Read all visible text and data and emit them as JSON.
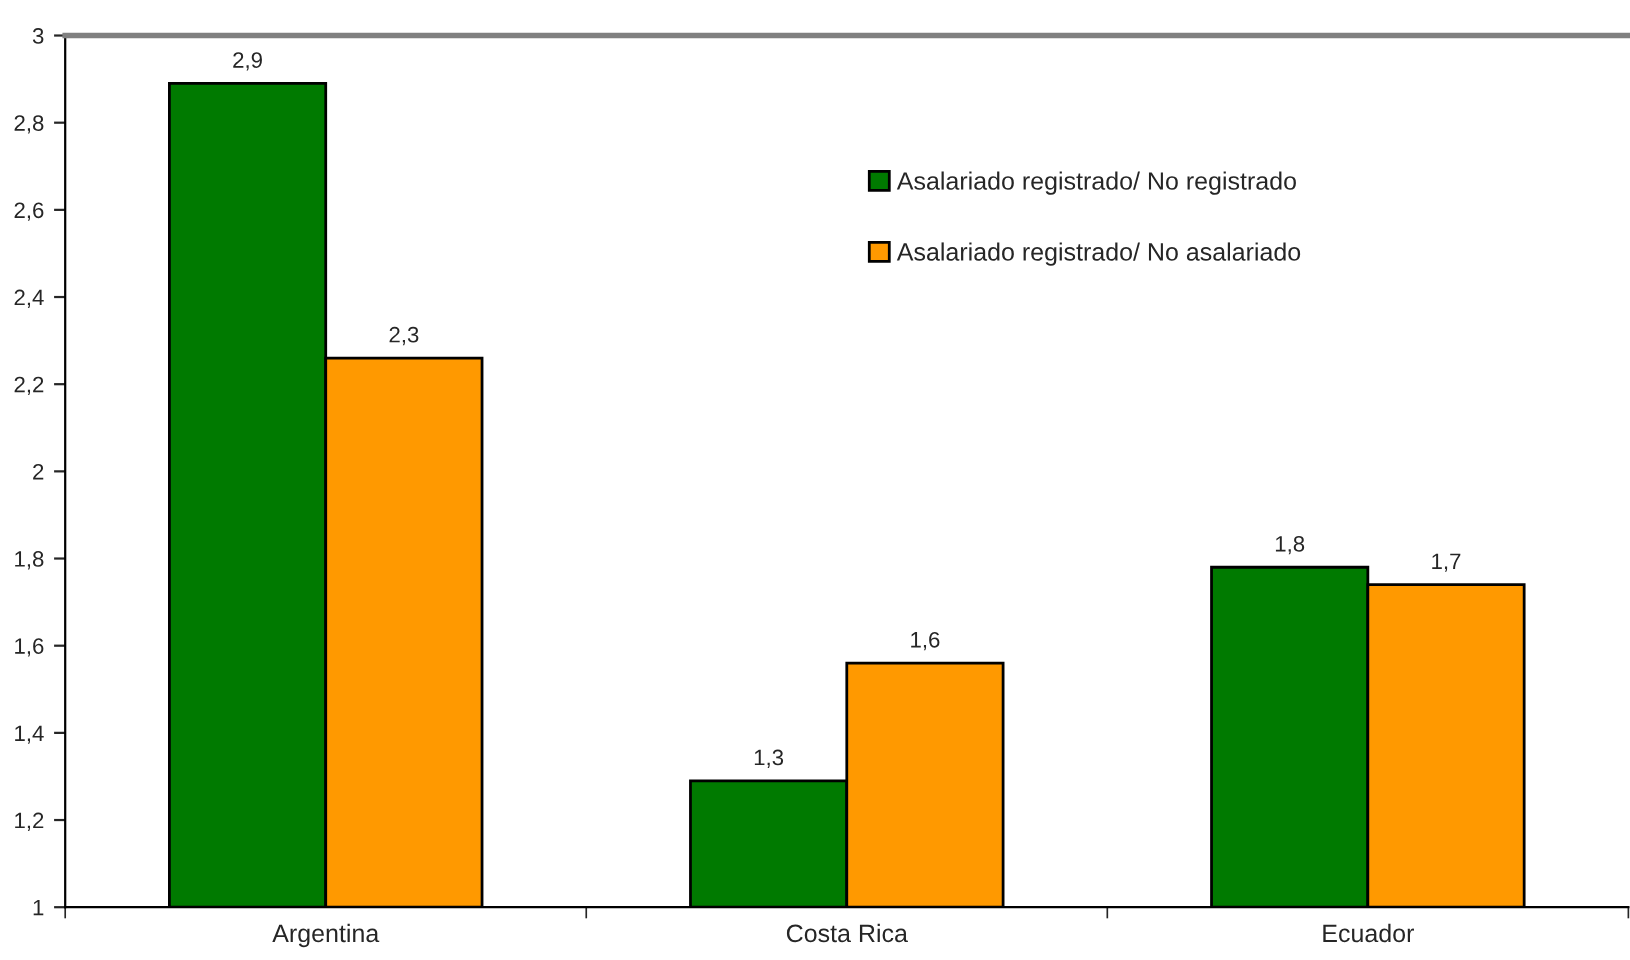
{
  "chart_data": {
    "type": "bar",
    "categories": [
      "Argentina",
      "Costa Rica",
      "Ecuador"
    ],
    "series": [
      {
        "name": "Asalariado registrado/ No registrado",
        "color": "#007a00",
        "values": [
          2.89,
          1.29,
          1.78
        ],
        "value_labels": [
          "2,9",
          "1,3",
          "1,8"
        ]
      },
      {
        "name": "Asalariado registrado/ No asalariado",
        "color": "#ff9900",
        "values": [
          2.26,
          1.56,
          1.74
        ],
        "value_labels": [
          "2,3",
          "1,6",
          "1,7"
        ]
      }
    ],
    "ylim": [
      1,
      3
    ],
    "yticks": [
      1,
      {
        "value": 1.2,
        "label": "1,2"
      },
      {
        "value": 1.4,
        "label": "1,4"
      },
      {
        "value": 1.6,
        "label": "1,6"
      },
      {
        "value": 1.8,
        "label": "1,8"
      },
      2,
      {
        "value": 2.2,
        "label": "2,2"
      },
      {
        "value": 2.4,
        "label": "2,4"
      },
      {
        "value": 2.6,
        "label": "2,6"
      },
      {
        "value": 2.8,
        "label": "2,8"
      },
      3
    ],
    "grid": false,
    "legend": "top right"
  }
}
